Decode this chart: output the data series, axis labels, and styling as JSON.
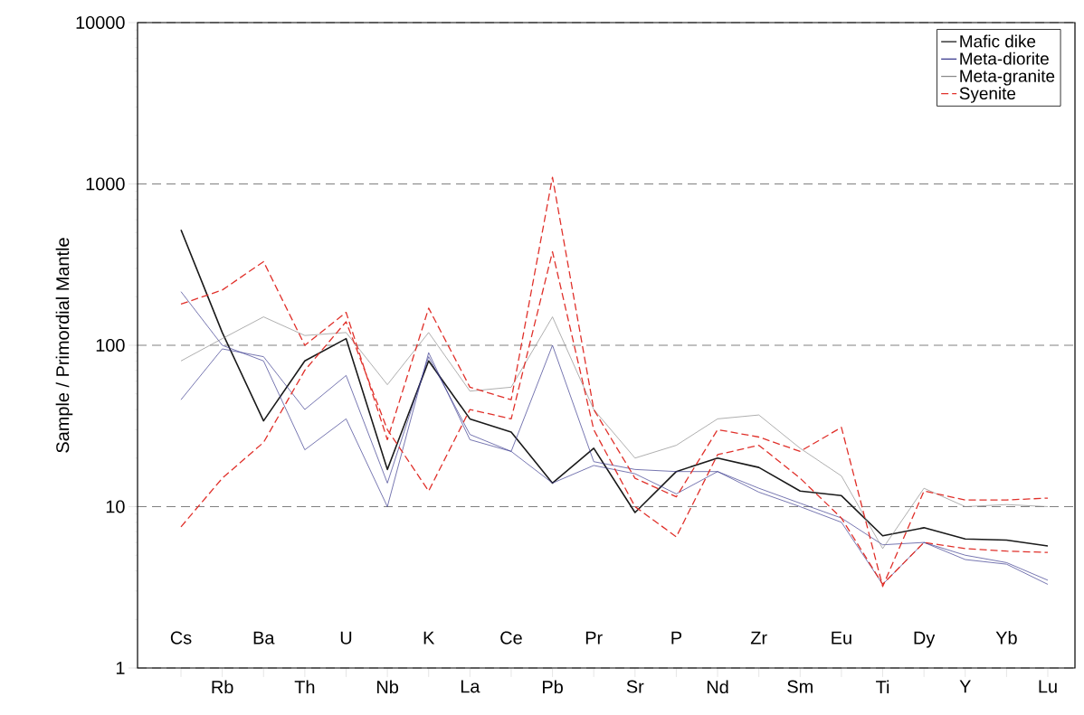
{
  "chart_data": {
    "type": "line",
    "ylabel": "Sample / Primordial Mantle",
    "log": "y",
    "grid": "y",
    "legend": "top right",
    "categories": [
      "Cs",
      "Rb",
      "Ba",
      "Th",
      "U",
      "Nb",
      "K",
      "La",
      "Ce",
      "Pb",
      "Pr",
      "Sr",
      "P",
      "Nd",
      "Zr",
      "Sm",
      "Eu",
      "Ti",
      "Dy",
      "Y",
      "Yb",
      "Lu"
    ],
    "ylim": [
      1,
      10000
    ],
    "yticks": [
      1,
      10,
      100,
      1000,
      10000
    ],
    "series": [
      {
        "name": "Mafic dike",
        "color": "#1a1a1a",
        "line_style": "solid",
        "values": [
          520,
          120,
          34,
          80,
          110,
          17,
          80,
          35,
          29,
          14,
          23,
          9.2,
          16.5,
          20,
          17.5,
          12.5,
          11.7,
          6.6,
          7.4,
          6.3,
          6.2,
          5.7
        ]
      },
      {
        "name": "Meta-diorite",
        "color": "#3b3b8f",
        "line_style": "solid",
        "values": [
          215,
          100,
          80,
          22.5,
          35,
          10,
          90,
          26,
          22,
          14,
          18,
          16,
          12,
          16.5,
          12.3,
          10,
          8,
          3.3,
          6,
          4.7,
          4.4,
          3.3
        ]
      },
      {
        "color": "#3b3b8f",
        "line_style": "solid",
        "values": [
          46,
          95,
          85,
          40,
          65,
          14,
          85,
          28,
          22,
          100,
          19,
          17,
          16.5,
          16.5,
          13,
          10.5,
          8.5,
          5.8,
          6,
          5,
          4.5,
          3.5
        ]
      },
      {
        "name": "Meta-granite",
        "color": "#8c8c8c",
        "line_style": "solid",
        "values": [
          80,
          110,
          150,
          115,
          120,
          57,
          120,
          52,
          55,
          150,
          40,
          20,
          24,
          35,
          37,
          23,
          15.5,
          5.5,
          13,
          10,
          10.3,
          10
        ]
      },
      {
        "name": "Syenite",
        "color": "#e0302a",
        "line_style": "dashed",
        "values": [
          180,
          220,
          330,
          100,
          160,
          26,
          170,
          55,
          46,
          1100,
          40,
          15,
          11.5,
          30,
          27,
          22,
          31,
          3.2,
          12.5,
          11,
          11,
          11.3
        ]
      },
      {
        "color": "#e0302a",
        "line_style": "dashed",
        "values": [
          7.5,
          15,
          25,
          70,
          140,
          30,
          12.5,
          40,
          35,
          380,
          30,
          10,
          6.5,
          21,
          24,
          15,
          8.5,
          3.3,
          6,
          5.5,
          5.3,
          5.2
        ]
      }
    ]
  }
}
